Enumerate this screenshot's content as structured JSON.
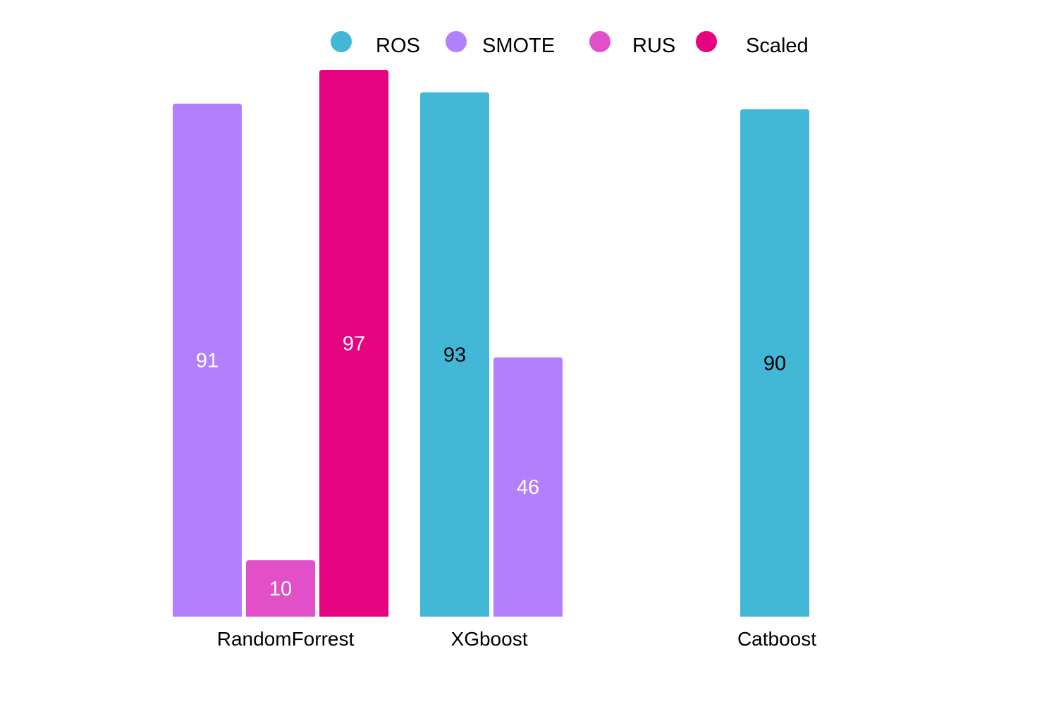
{
  "chart_data": {
    "type": "bar",
    "title": "",
    "xlabel": "",
    "ylabel": "",
    "ylim": [
      0,
      100
    ],
    "grid": false,
    "legend_position": "top",
    "series": [
      {
        "name": "ROS",
        "color": "#42b7d6",
        "label_color": "#000000",
        "bars": [
          {
            "category": "XGboost",
            "value": 93
          },
          {
            "category": "Catboost",
            "value": 90
          }
        ]
      },
      {
        "name": "SMOTE",
        "color": "#b380fd",
        "label_color": "#ffffff",
        "bars": [
          {
            "category": "RandomForrest",
            "value": 91
          },
          {
            "category": "XGboost",
            "value": 46
          }
        ]
      },
      {
        "name": "RUS",
        "color": "#e150c8",
        "label_color": "#ffffff",
        "bars": [
          {
            "category": "RandomForrest",
            "value": 10
          }
        ]
      },
      {
        "name": "Scaled",
        "color": "#e6037f",
        "label_color": "#ffffff",
        "bars": [
          {
            "category": "RandomForrest",
            "value": 97
          }
        ]
      }
    ],
    "categories": [
      "RandomForrest",
      "XGboost",
      "Catboost"
    ]
  }
}
